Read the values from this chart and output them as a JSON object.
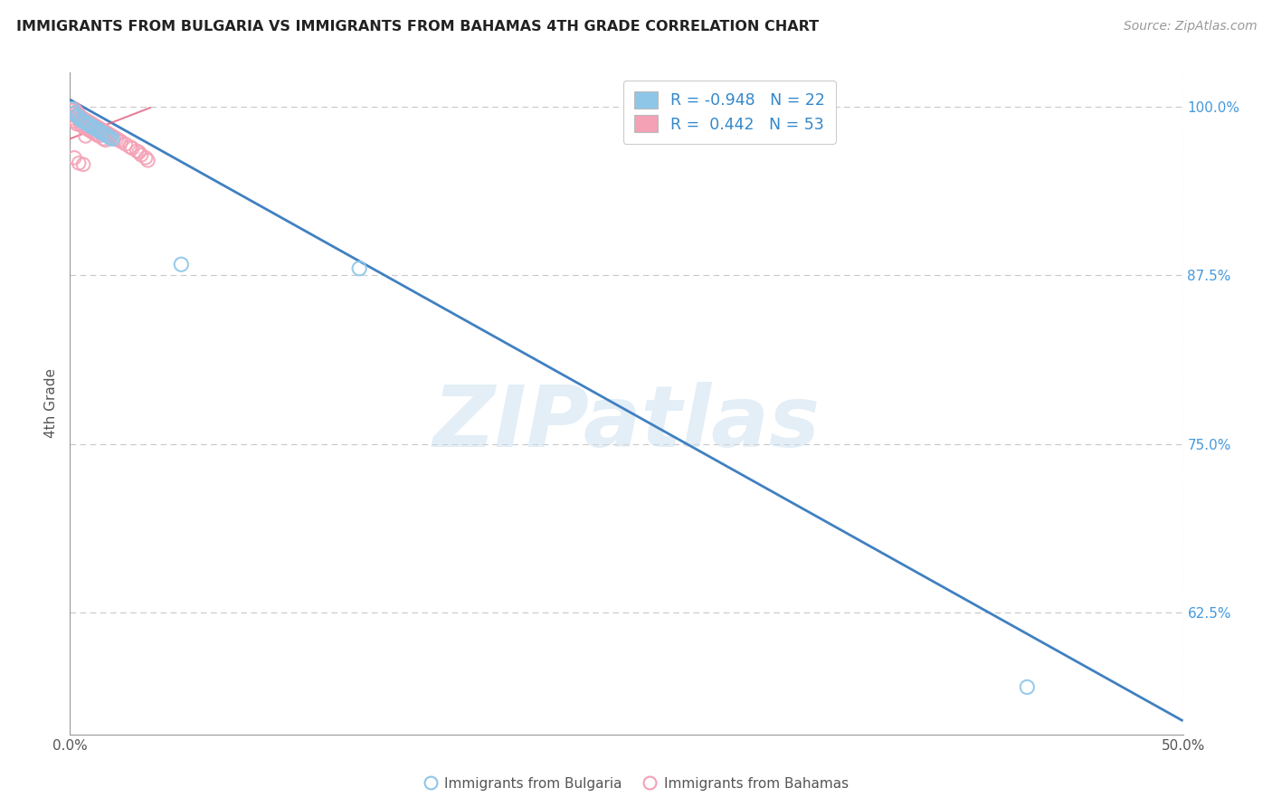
{
  "title": "IMMIGRANTS FROM BULGARIA VS IMMIGRANTS FROM BAHAMAS 4TH GRADE CORRELATION CHART",
  "source": "Source: ZipAtlas.com",
  "ylabel": "4th Grade",
  "ytick_labels": [
    "100.0%",
    "87.5%",
    "75.0%",
    "62.5%"
  ],
  "ytick_values": [
    1.0,
    0.875,
    0.75,
    0.625
  ],
  "xlim": [
    0.0,
    0.5
  ],
  "ylim": [
    0.535,
    1.025
  ],
  "legend_blue_r": "R = -0.948",
  "legend_blue_n": "N = 22",
  "legend_pink_r": "R =  0.442",
  "legend_pink_n": "N = 53",
  "blue_color": "#8ec6e8",
  "pink_color": "#f4a0b5",
  "line_color": "#4080c0",
  "pink_line_color": "#e06080",
  "watermark": "ZIPatlas",
  "blue_scatter_x": [
    0.001,
    0.002,
    0.003,
    0.004,
    0.005,
    0.006,
    0.007,
    0.008,
    0.009,
    0.01,
    0.011,
    0.012,
    0.013,
    0.014,
    0.015,
    0.016,
    0.017,
    0.018,
    0.019,
    0.05,
    0.43,
    0.13
  ],
  "blue_scatter_y": [
    0.998,
    0.995,
    0.993,
    0.992,
    0.99,
    0.989,
    0.988,
    0.987,
    0.986,
    0.985,
    0.984,
    0.983,
    0.982,
    0.981,
    0.98,
    0.979,
    0.978,
    0.977,
    0.976,
    0.883,
    0.57,
    0.88
  ],
  "pink_scatter_x": [
    0.001,
    0.001,
    0.001,
    0.002,
    0.002,
    0.002,
    0.003,
    0.003,
    0.003,
    0.004,
    0.004,
    0.005,
    0.005,
    0.006,
    0.006,
    0.007,
    0.007,
    0.007,
    0.008,
    0.008,
    0.009,
    0.009,
    0.01,
    0.01,
    0.011,
    0.011,
    0.012,
    0.012,
    0.013,
    0.013,
    0.014,
    0.015,
    0.015,
    0.016,
    0.016,
    0.017,
    0.018,
    0.019,
    0.02,
    0.021,
    0.022,
    0.023,
    0.025,
    0.027,
    0.028,
    0.03,
    0.031,
    0.032,
    0.034,
    0.035,
    0.002,
    0.004,
    0.006
  ],
  "pink_scatter_y": [
    0.997,
    0.994,
    0.991,
    0.998,
    0.995,
    0.989,
    0.996,
    0.993,
    0.987,
    0.994,
    0.99,
    0.992,
    0.986,
    0.991,
    0.985,
    0.99,
    0.984,
    0.978,
    0.989,
    0.983,
    0.988,
    0.982,
    0.987,
    0.981,
    0.986,
    0.98,
    0.985,
    0.979,
    0.984,
    0.978,
    0.983,
    0.982,
    0.976,
    0.981,
    0.975,
    0.98,
    0.979,
    0.978,
    0.977,
    0.976,
    0.975,
    0.974,
    0.972,
    0.97,
    0.969,
    0.967,
    0.966,
    0.964,
    0.962,
    0.96,
    0.962,
    0.958,
    0.957
  ],
  "blue_line_x": [
    0.0,
    0.5
  ],
  "blue_line_y": [
    1.005,
    0.545
  ],
  "pink_line_x": [
    0.0,
    0.036
  ],
  "pink_line_y": [
    0.976,
    0.999
  ]
}
